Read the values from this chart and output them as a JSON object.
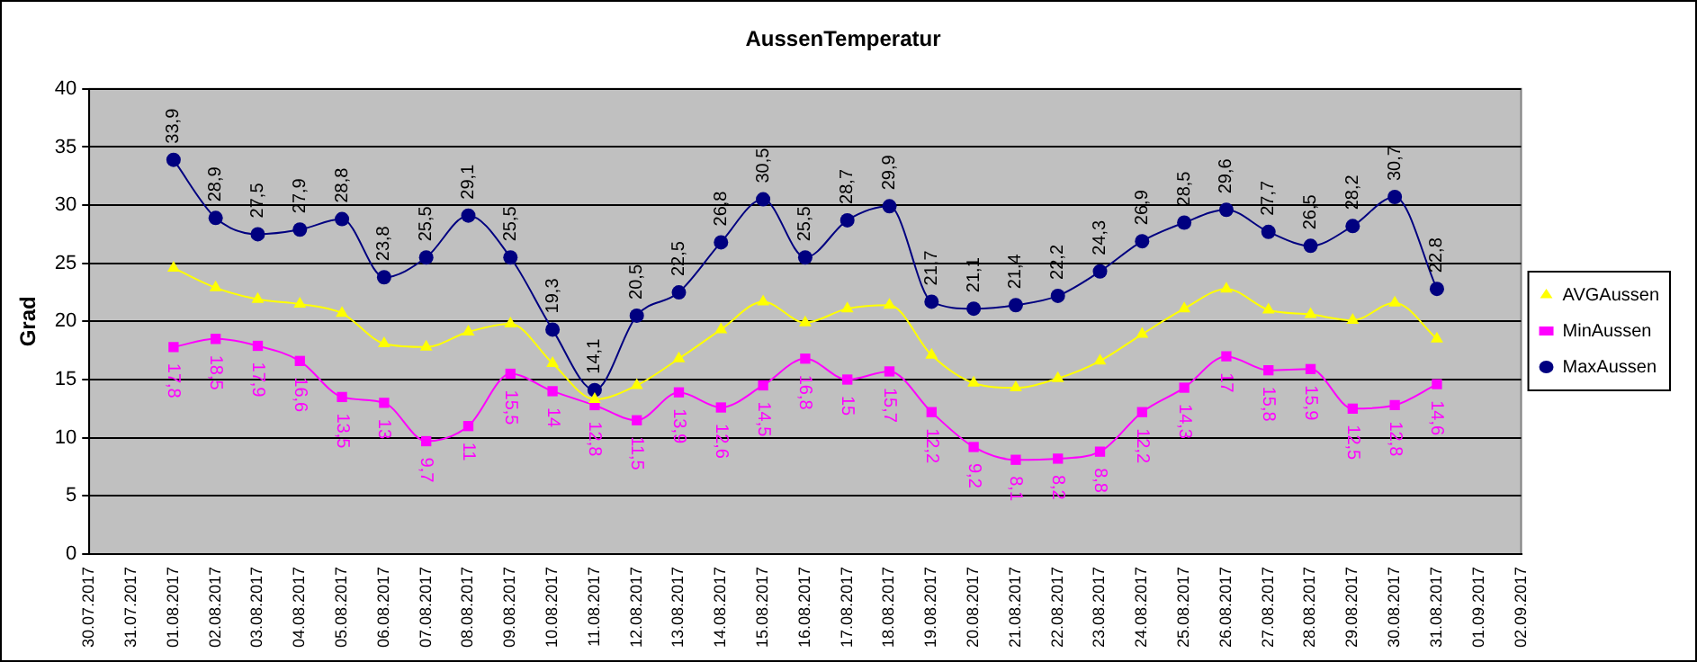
{
  "chart_data": {
    "type": "line",
    "title": "AussenTemperatur",
    "ylabel": "Grad",
    "categories": [
      "30.07.2017",
      "31.07.2017",
      "01.08.2017",
      "02.08.2017",
      "03.08.2017",
      "04.08.2017",
      "05.08.2017",
      "06.08.2017",
      "07.08.2017",
      "08.08.2017",
      "09.08.2017",
      "10.08.2017",
      "11.08.2017",
      "12.08.2017",
      "13.08.2017",
      "14.08.2017",
      "15.08.2017",
      "16.08.2017",
      "17.08.2017",
      "18.08.2017",
      "19.08.2017",
      "20.08.2017",
      "21.08.2017",
      "22.08.2017",
      "23.08.2017",
      "24.08.2017",
      "25.08.2017",
      "26.08.2017",
      "27.08.2017",
      "28.08.2017",
      "29.08.2017",
      "30.08.2017",
      "31.08.2017",
      "01.09.2017",
      "02.09.2017"
    ],
    "series": [
      {
        "name": "MaxAussen",
        "color": "#000080",
        "marker": "circle",
        "values": [
          null,
          null,
          33.9,
          28.9,
          27.5,
          27.9,
          28.8,
          23.8,
          25.5,
          29.1,
          25.5,
          19.3,
          14.1,
          20.5,
          22.5,
          26.8,
          30.5,
          25.5,
          28.7,
          29.9,
          21.7,
          21.1,
          21.4,
          22.2,
          24.3,
          26.9,
          28.5,
          29.6,
          27.7,
          26.5,
          28.2,
          30.7,
          22.8,
          null,
          null
        ],
        "value_labels": [
          null,
          null,
          "33,9",
          "28,9",
          "27,5",
          "27,9",
          "28,8",
          "23,8",
          "25,5",
          "29,1",
          "25,5",
          "19,3",
          "14,1",
          "20,5",
          "22,5",
          "26,8",
          "30,5",
          "25,5",
          "28,7",
          "29,9",
          "21,7",
          "21,1",
          "21,4",
          "22,2",
          "24,3",
          "26,9",
          "28,5",
          "29,6",
          "27,7",
          "26,5",
          "28,2",
          "30,7",
          "22,8",
          null,
          null
        ]
      },
      {
        "name": "MinAussen",
        "color": "#ff00ff",
        "marker": "square",
        "values": [
          null,
          null,
          17.8,
          18.5,
          17.9,
          16.6,
          13.5,
          13,
          9.7,
          11,
          15.5,
          14,
          12.8,
          11.5,
          13.9,
          12.6,
          14.5,
          16.8,
          15,
          15.7,
          12.2,
          9.2,
          8.1,
          8.2,
          8.8,
          12.2,
          14.3,
          17,
          15.8,
          15.9,
          12.5,
          12.8,
          14.6,
          null,
          null
        ],
        "value_labels": [
          null,
          null,
          "17,8",
          "18,5",
          "17,9",
          "16,6",
          "13,5",
          "13",
          "9,7",
          "11",
          "15,5",
          "14",
          "12,8",
          "11,5",
          "13,9",
          "12,6",
          "14,5",
          "16,8",
          "15",
          "15,7",
          "12,2",
          "9,2",
          "8,1",
          "8,2",
          "8,8",
          "12,2",
          "14,3",
          "17",
          "15,8",
          "15,9",
          "12,5",
          "12,8",
          "14,6",
          null,
          null
        ]
      },
      {
        "name": "AVGAussen",
        "color": "#ffff00",
        "marker": "triangle",
        "values": [
          null,
          null,
          24.6,
          22.9,
          21.9,
          21.5,
          20.7,
          18.1,
          17.8,
          19.1,
          19.8,
          16.4,
          13.3,
          14.5,
          16.8,
          19.3,
          21.7,
          19.9,
          21.1,
          21.4,
          17.1,
          14.7,
          14.3,
          15.1,
          16.6,
          18.9,
          21.1,
          22.8,
          21.0,
          20.6,
          20.1,
          21.6,
          18.5,
          null,
          null
        ]
      }
    ],
    "ylim": [
      0,
      40
    ],
    "yticks": [
      0,
      5,
      10,
      15,
      20,
      25,
      30,
      35,
      40
    ],
    "grid": "y",
    "legend": "right"
  }
}
